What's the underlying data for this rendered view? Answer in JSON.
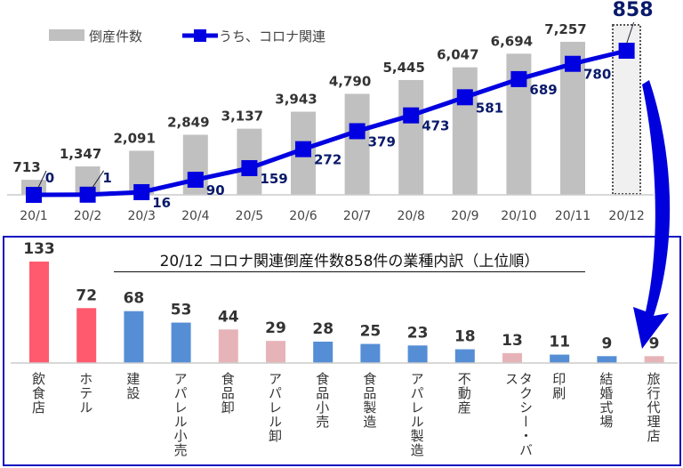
{
  "chart_data": [
    {
      "type": "bar+line",
      "categories": [
        "20/1",
        "20/2",
        "20/3",
        "20/4",
        "20/5",
        "20/6",
        "20/7",
        "20/8",
        "20/9",
        "20/10",
        "20/11",
        "20/12"
      ],
      "series": [
        {
          "name": "倒産件数",
          "type": "bar",
          "color": "#c0c0c0",
          "values": [
            713,
            1347,
            2091,
            2849,
            3137,
            3943,
            4790,
            5445,
            6047,
            6694,
            7257,
            null
          ],
          "labels": [
            "713",
            "1,347",
            "2,091",
            "2,849",
            "3,137",
            "3,943",
            "4,790",
            "5,445",
            "6,047",
            "6,694",
            "7,257",
            ""
          ]
        },
        {
          "name": "うち、コロナ関連",
          "type": "line",
          "color": "#0000e0",
          "values": [
            0,
            1,
            16,
            90,
            159,
            272,
            379,
            473,
            581,
            689,
            780,
            858
          ],
          "labels": [
            "0",
            "1",
            "16",
            "90",
            "159",
            "272",
            "379",
            "473",
            "581",
            "689",
            "780",
            "858"
          ]
        }
      ],
      "legend": "top-left",
      "highlight_category": "20/12"
    },
    {
      "type": "bar",
      "title": "20/12  コロナ関連倒産件数858件の業種内訳（上位順）",
      "categories": [
        "飲食店",
        "ホテル",
        "建設",
        "アパレル小売",
        "食品卸",
        "アパレル卸",
        "食品小売",
        "食品製造",
        "アパレル製造",
        "不動産",
        "タクシー・バス",
        "印刷",
        "結婚式場",
        "旅行代理店"
      ],
      "values": [
        133,
        72,
        68,
        53,
        44,
        29,
        28,
        25,
        23,
        18,
        13,
        11,
        9,
        9
      ],
      "colors": [
        "#ff5a6e",
        "#ff5a6e",
        "#558ed5",
        "#558ed5",
        "#e6b4b8",
        "#e6b4b8",
        "#558ed5",
        "#558ed5",
        "#558ed5",
        "#558ed5",
        "#e6b4b8",
        "#558ed5",
        "#558ed5",
        "#e6b4b8"
      ]
    }
  ]
}
